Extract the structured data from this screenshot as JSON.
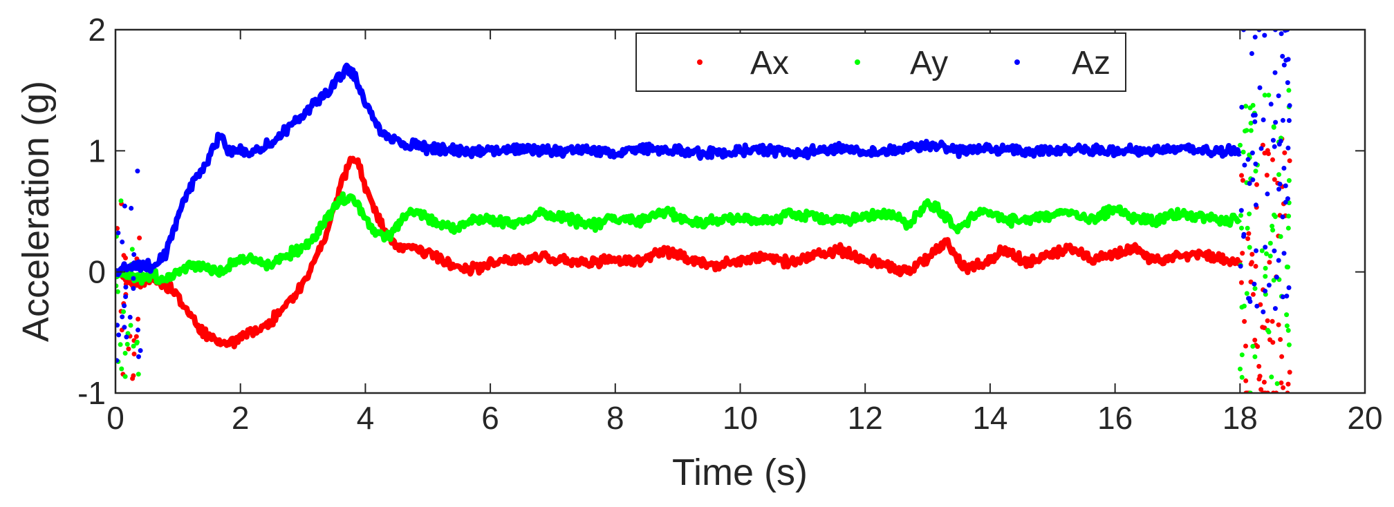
{
  "chart_data": {
    "type": "scatter",
    "title": "",
    "xlabel": "Time (s)",
    "ylabel": "Acceleration (g)",
    "xlim": [
      0,
      20
    ],
    "ylim": [
      -1,
      2
    ],
    "xticks": [
      0,
      2,
      4,
      6,
      8,
      10,
      12,
      14,
      16,
      18,
      20
    ],
    "yticks": [
      -1,
      0,
      1,
      2
    ],
    "xtick_labels": [
      "0",
      "2",
      "4",
      "6",
      "8",
      "10",
      "12",
      "14",
      "16",
      "18",
      "20"
    ],
    "ytick_labels": [
      "-1",
      "0",
      "1",
      "2"
    ],
    "grid": false,
    "legend": {
      "position": "top-right",
      "orientation": "horizontal",
      "entries": [
        "Ax",
        "Ay",
        "Az"
      ]
    },
    "series": [
      {
        "name": "Ax",
        "color": "#ff0000",
        "x": [
          0.0,
          0.2,
          0.4,
          0.6,
          0.8,
          1.0,
          1.2,
          1.4,
          1.6,
          1.8,
          2.0,
          2.2,
          2.4,
          2.6,
          2.8,
          3.0,
          3.2,
          3.4,
          3.6,
          3.7,
          3.8,
          3.9,
          4.0,
          4.2,
          4.4,
          4.6,
          4.8,
          5.0,
          5.2,
          5.4,
          5.6,
          5.8,
          6.0,
          6.4,
          6.8,
          7.2,
          7.6,
          8.0,
          8.4,
          8.8,
          9.2,
          9.6,
          10.0,
          10.4,
          10.8,
          11.2,
          11.6,
          12.0,
          12.4,
          12.7,
          13.0,
          13.3,
          13.6,
          14.0,
          14.2,
          14.6,
          15.0,
          15.3,
          15.6,
          16.0,
          16.3,
          16.6,
          17.0,
          17.4,
          17.8,
          18.0
        ],
        "y": [
          0.0,
          -0.05,
          -0.1,
          -0.05,
          -0.1,
          -0.2,
          -0.35,
          -0.5,
          -0.55,
          -0.6,
          -0.55,
          -0.5,
          -0.45,
          -0.35,
          -0.25,
          -0.1,
          0.1,
          0.35,
          0.7,
          0.85,
          0.95,
          0.9,
          0.7,
          0.45,
          0.25,
          0.2,
          0.2,
          0.15,
          0.1,
          0.05,
          0.02,
          0.03,
          0.08,
          0.1,
          0.12,
          0.1,
          0.07,
          0.1,
          0.08,
          0.18,
          0.1,
          0.05,
          0.1,
          0.12,
          0.08,
          0.15,
          0.18,
          0.1,
          0.05,
          0.0,
          0.12,
          0.25,
          0.02,
          0.1,
          0.18,
          0.08,
          0.15,
          0.2,
          0.1,
          0.15,
          0.2,
          0.1,
          0.12,
          0.15,
          0.1,
          0.08
        ]
      },
      {
        "name": "Ay",
        "color": "#00ff00",
        "x": [
          0.0,
          0.2,
          0.4,
          0.6,
          0.8,
          1.0,
          1.2,
          1.4,
          1.6,
          1.8,
          2.0,
          2.2,
          2.4,
          2.6,
          2.8,
          3.0,
          3.2,
          3.4,
          3.6,
          3.8,
          4.0,
          4.2,
          4.4,
          4.6,
          4.8,
          5.0,
          5.4,
          5.8,
          6.0,
          6.4,
          6.8,
          7.2,
          7.6,
          8.0,
          8.4,
          8.8,
          9.2,
          9.6,
          10.0,
          10.4,
          10.8,
          11.2,
          11.6,
          12.0,
          12.4,
          12.7,
          13.0,
          13.2,
          13.5,
          13.9,
          14.3,
          14.8,
          15.2,
          15.6,
          16.0,
          16.3,
          16.6,
          17.0,
          17.4,
          17.8,
          18.0
        ],
        "y": [
          0.0,
          -0.02,
          -0.05,
          -0.03,
          -0.05,
          0.0,
          0.05,
          0.05,
          0.0,
          0.05,
          0.1,
          0.1,
          0.05,
          0.1,
          0.15,
          0.2,
          0.3,
          0.45,
          0.6,
          0.6,
          0.45,
          0.3,
          0.3,
          0.45,
          0.5,
          0.45,
          0.35,
          0.45,
          0.42,
          0.4,
          0.48,
          0.45,
          0.38,
          0.45,
          0.42,
          0.5,
          0.4,
          0.42,
          0.45,
          0.42,
          0.48,
          0.45,
          0.42,
          0.45,
          0.48,
          0.38,
          0.58,
          0.5,
          0.35,
          0.52,
          0.42,
          0.45,
          0.5,
          0.42,
          0.52,
          0.45,
          0.42,
          0.48,
          0.45,
          0.42,
          0.45
        ]
      },
      {
        "name": "Az",
        "color": "#0000ff",
        "x": [
          0.0,
          0.2,
          0.4,
          0.6,
          0.8,
          1.0,
          1.2,
          1.4,
          1.6,
          1.7,
          1.8,
          2.0,
          2.2,
          2.4,
          2.6,
          2.8,
          3.0,
          3.2,
          3.4,
          3.6,
          3.7,
          3.8,
          3.9,
          4.0,
          4.2,
          4.4,
          4.6,
          4.8,
          5.0,
          5.5,
          6.0,
          6.5,
          7.0,
          7.5,
          8.0,
          8.5,
          9.0,
          9.5,
          10.0,
          10.5,
          11.0,
          11.5,
          12.0,
          12.5,
          13.0,
          13.5,
          14.0,
          14.5,
          15.0,
          15.5,
          16.0,
          16.5,
          17.0,
          17.5,
          18.0
        ],
        "y": [
          0.0,
          0.05,
          0.05,
          0.05,
          0.15,
          0.45,
          0.7,
          0.85,
          1.05,
          1.15,
          1.0,
          1.0,
          0.98,
          1.05,
          1.1,
          1.2,
          1.3,
          1.4,
          1.5,
          1.62,
          1.68,
          1.65,
          1.55,
          1.4,
          1.2,
          1.1,
          1.05,
          1.05,
          1.02,
          1.0,
          1.0,
          1.02,
          1.0,
          1.0,
          0.98,
          1.02,
          1.0,
          0.98,
          1.0,
          1.0,
          0.98,
          1.02,
          1.0,
          1.0,
          1.05,
          1.0,
          1.02,
          1.0,
          1.0,
          1.02,
          1.0,
          1.0,
          1.02,
          1.0,
          1.0
        ]
      }
    ],
    "annotations": [
      "impact burst near 18-18.8 s: scattered samples across full axis range",
      "start burst near 0-0.4 s"
    ]
  }
}
